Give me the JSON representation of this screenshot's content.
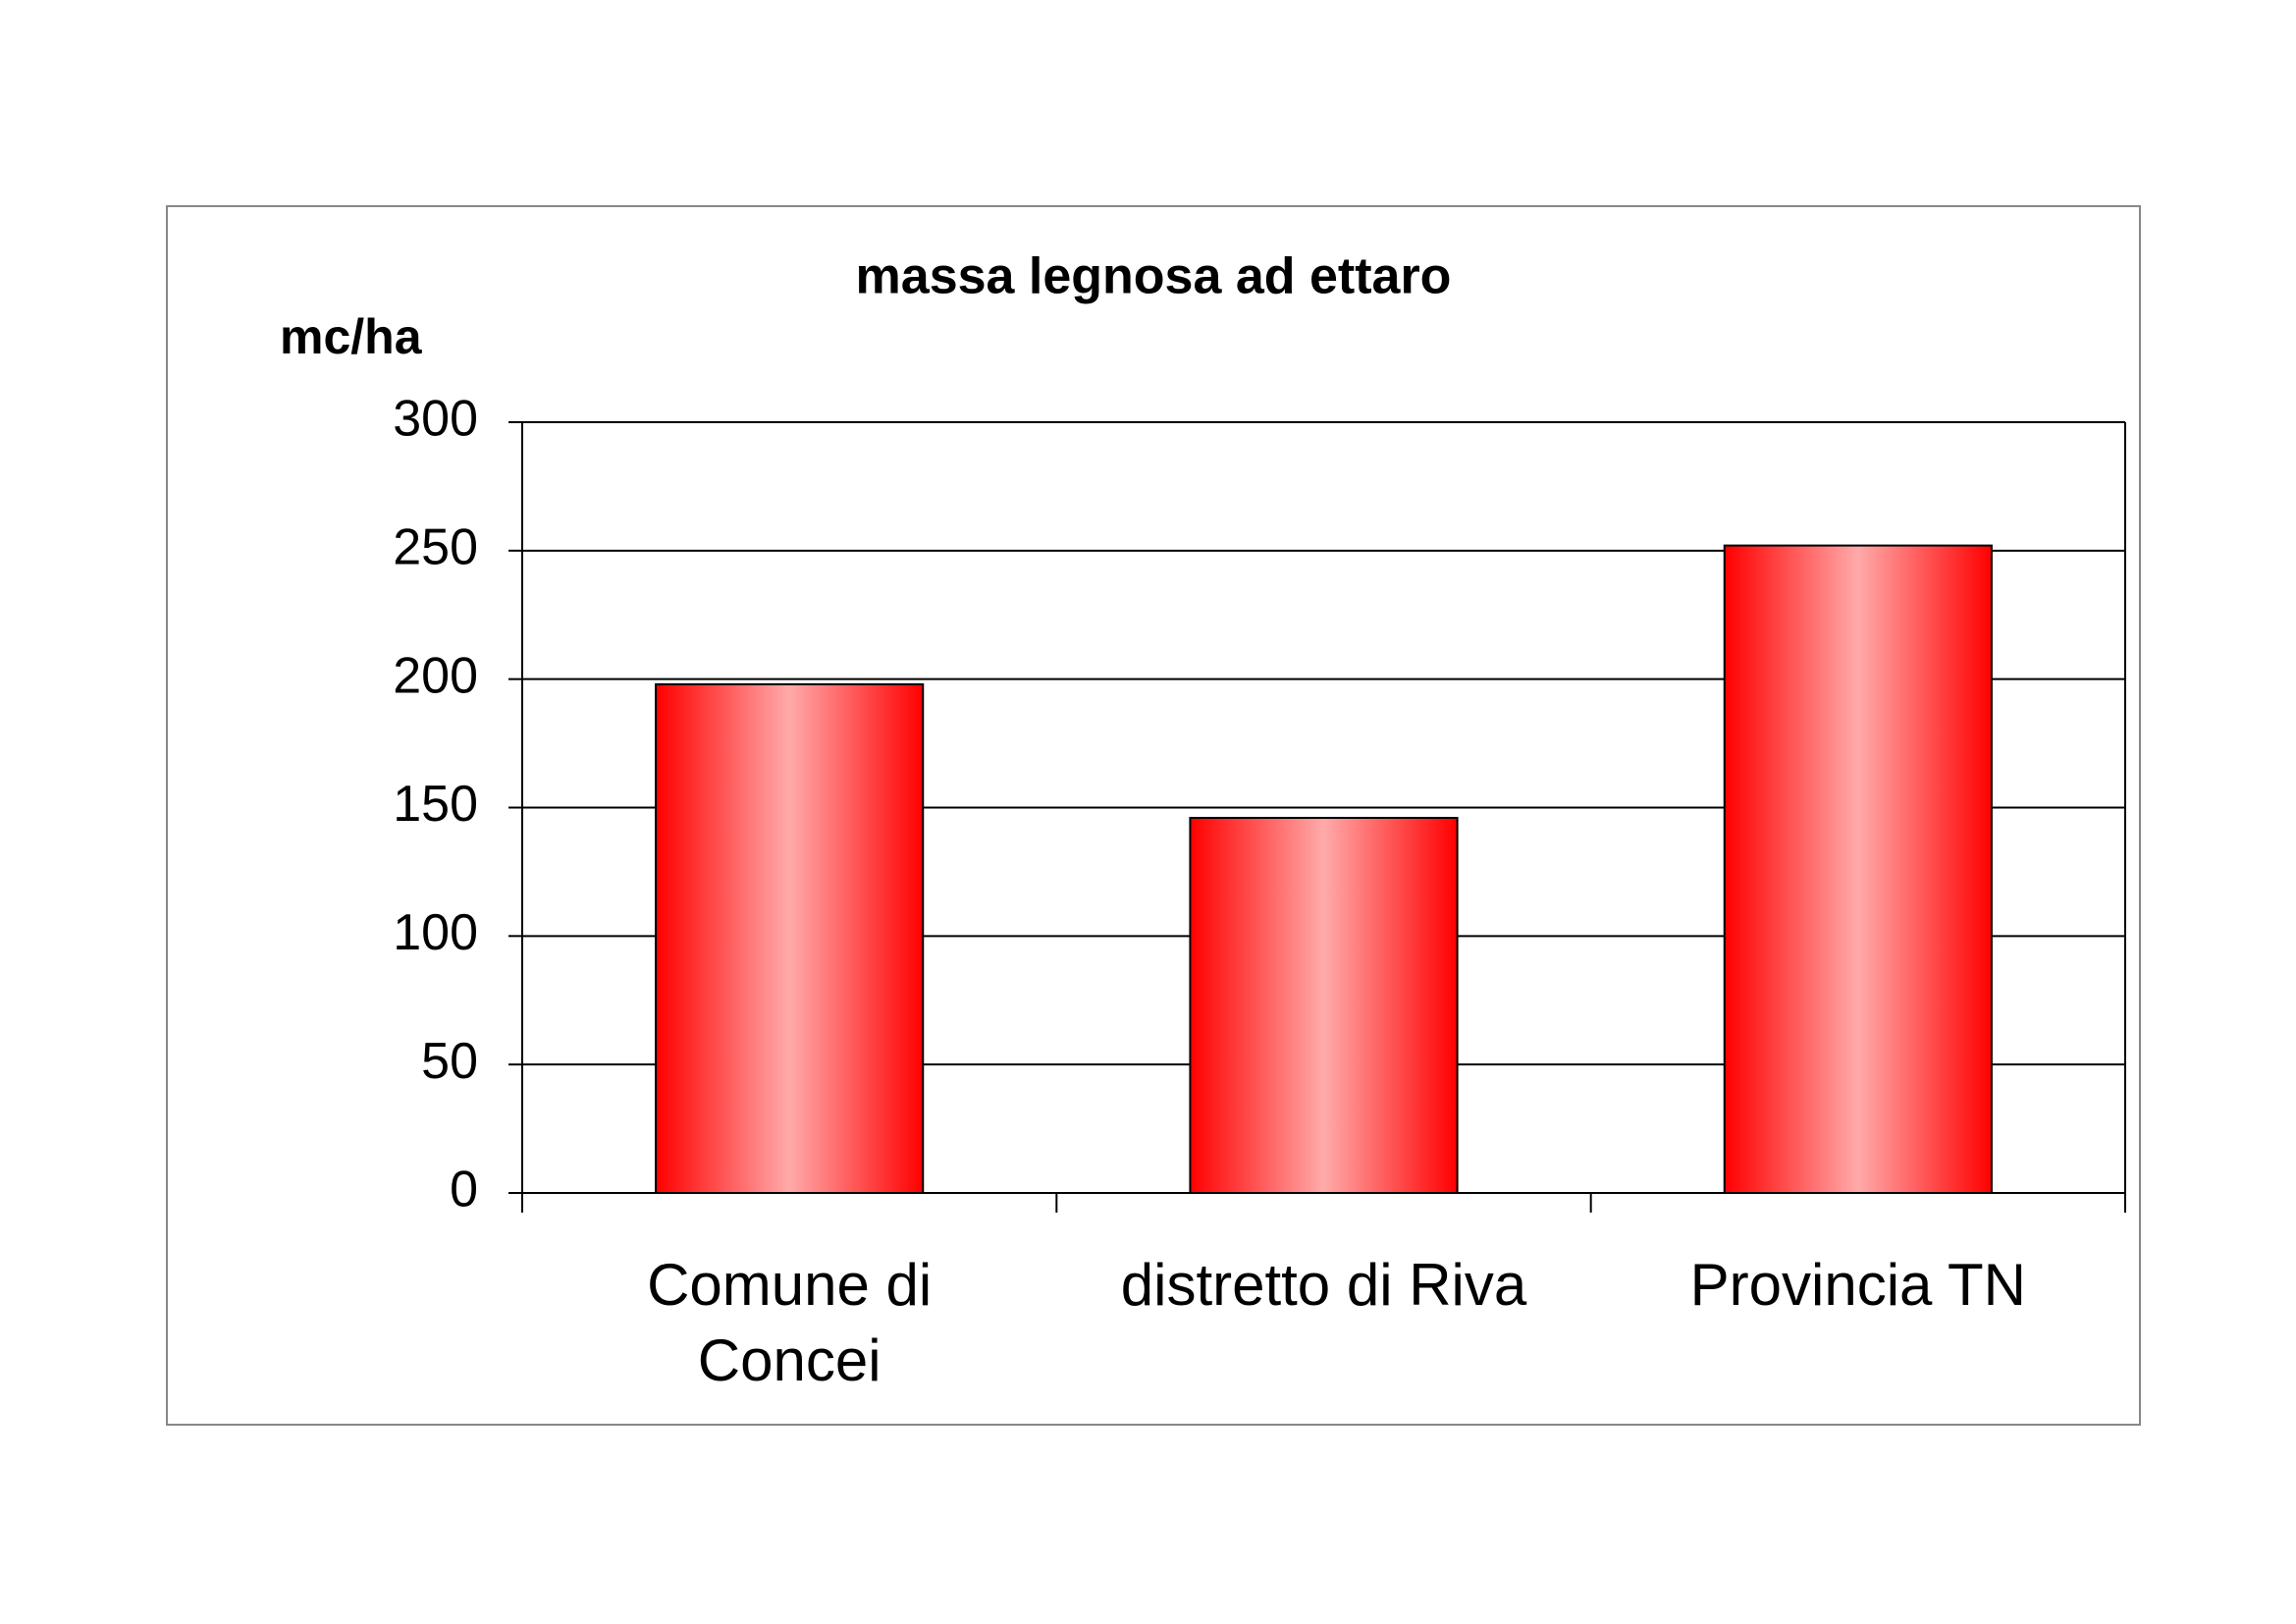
{
  "chart_data": {
    "type": "bar",
    "title": "massa legnosa ad ettaro",
    "y_label": "mc/ha",
    "categories": [
      "Comune di Concei",
      "distretto di Riva",
      "Provincia TN"
    ],
    "values": [
      198,
      146,
      252
    ],
    "color": "#ff0000",
    "ylim": [
      0,
      300
    ],
    "yticks": [
      0,
      50,
      100,
      150,
      200,
      250,
      300
    ],
    "grid": true
  }
}
